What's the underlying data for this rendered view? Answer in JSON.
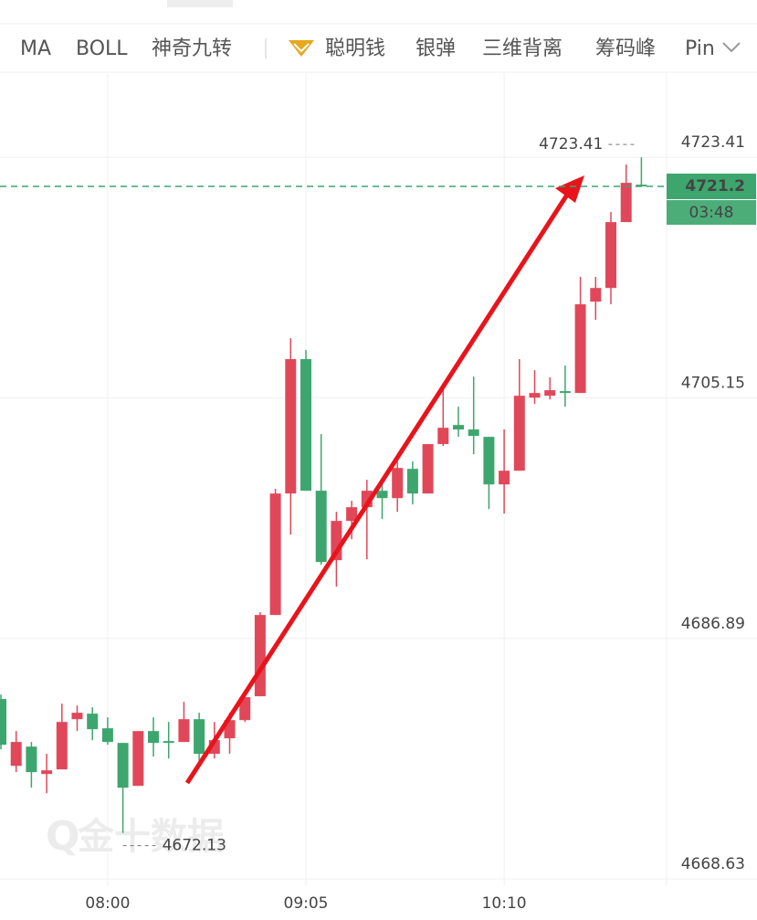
{
  "toolbar": {
    "items": [
      "MA",
      "BOLL",
      "神奇九转",
      "聪明钱",
      "银弹",
      "三维背离",
      "筹码峰",
      "Pin"
    ]
  },
  "chart_data": {
    "type": "candlestick",
    "categories": [
      null,
      null,
      null,
      null,
      null,
      null,
      null,
      "08:00",
      null,
      null,
      null,
      null,
      null,
      null,
      null,
      null,
      null,
      null,
      null,
      null,
      "09:05",
      null,
      null,
      null,
      null,
      null,
      null,
      null,
      null,
      null,
      null,
      null,
      null,
      "10:10",
      null,
      null,
      null,
      null,
      null,
      null,
      null,
      null,
      null
    ],
    "open": [
      4682.29,
      4677.22,
      4678.68,
      4676.6,
      4676.95,
      4680.76,
      4681.18,
      4680.07,
      4678.96,
      4675.7,
      4679.86,
      4679.1,
      4679.03,
      4680.76,
      4678.13,
      4679.31,
      4680.69,
      4682.5,
      4688.67,
      4697.89,
      4708.09,
      4698.1,
      4692.83,
      4695.81,
      4696.85,
      4698.1,
      4697.54,
      4699.76,
      4697.89,
      4701.64,
      4703.09,
      4702.75,
      4702.19,
      4698.58,
      4699.62,
      4705.17,
      4705.31,
      4705.66,
      4705.52,
      4712.45,
      4713.49,
      4718.49,
      4721.33
    ],
    "high": [
      4682.63,
      4679.86,
      4679.03,
      4678.13,
      4681.94,
      4681.8,
      4681.66,
      4680.9,
      4678.96,
      4679.86,
      4680.9,
      4680.55,
      4682.08,
      4681.25,
      4680.55,
      4681.25,
      4682.63,
      4688.88,
      4698.24,
      4709.68,
      4708.78,
      4702.4,
      4696.5,
      4697.34,
      4698.93,
      4698.93,
      4700.32,
      4700.32,
      4701.64,
      4706.21,
      4704.48,
      4706.77,
      4702.19,
      4702.75,
      4708.09,
      4707.25,
      4706.7,
      4707.6,
      4714.33,
      4714.33,
      4719.25,
      4722.86,
      4723.41
    ],
    "low": [
      4678.47,
      4676.74,
      4675.56,
      4675.14,
      4676.95,
      4679.86,
      4679.17,
      4678.82,
      4672.13,
      4675.7,
      4677.92,
      4677.78,
      4679.03,
      4677.43,
      4677.78,
      4678.13,
      4680.55,
      4682.5,
      4688.67,
      4694.77,
      4698.1,
      4692.48,
      4690.82,
      4694.42,
      4692.9,
      4695.95,
      4696.5,
      4697.06,
      4697.89,
      4701.5,
      4702.19,
      4700.87,
      4696.71,
      4696.37,
      4699.62,
      4704.69,
      4705.03,
      4704.48,
      4705.52,
      4711.07,
      4712.25,
      4718.49,
      4721.19
    ],
    "close": [
      4678.82,
      4679.03,
      4676.74,
      4676.88,
      4680.55,
      4681.25,
      4680.0,
      4679.03,
      4675.56,
      4679.86,
      4678.96,
      4678.96,
      4680.76,
      4678.13,
      4679.17,
      4680.69,
      4682.43,
      4688.67,
      4697.89,
      4708.09,
      4698.1,
      4692.69,
      4695.81,
      4696.85,
      4698.1,
      4697.54,
      4699.83,
      4697.89,
      4701.64,
      4702.88,
      4702.75,
      4702.26,
      4698.58,
      4699.62,
      4705.31,
      4705.52,
      4705.73,
      4705.52,
      4712.25,
      4713.49,
      4718.49,
      4721.47,
      4721.2
    ],
    "ylim": [
      4668.5,
      4729.8
    ],
    "yticks": [
      4668.63,
      4686.89,
      4705.15,
      4723.41
    ],
    "grid": true,
    "up_color": "#e0485a",
    "down_color": "#3da66e",
    "countdown": "03:48",
    "watermark": "金十数据"
  }
}
